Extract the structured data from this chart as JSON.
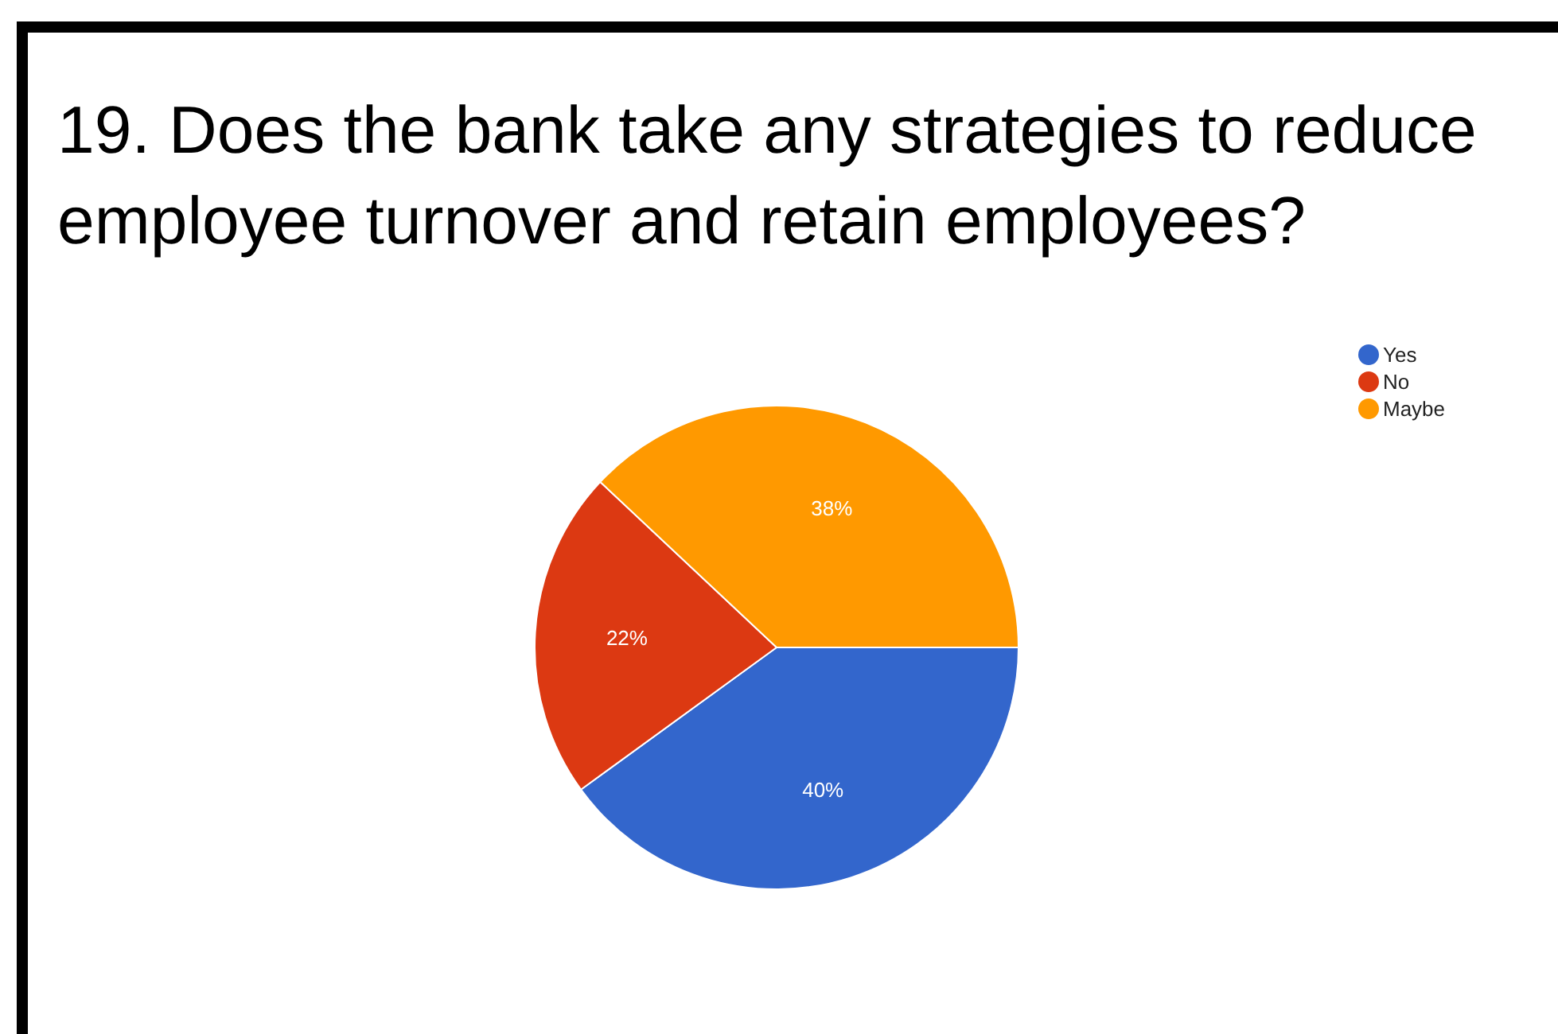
{
  "chart_data": {
    "type": "pie",
    "title": "19. Does the bank take any strategies to reduce employee turnover and retain employees?",
    "categories": [
      "Yes",
      "No",
      "Maybe"
    ],
    "values": [
      40,
      22,
      38
    ],
    "colors": [
      "#3366cc",
      "#dc3912",
      "#ff9900"
    ],
    "value_labels": [
      "40%",
      "22%",
      "38%"
    ],
    "legend": "top right"
  }
}
